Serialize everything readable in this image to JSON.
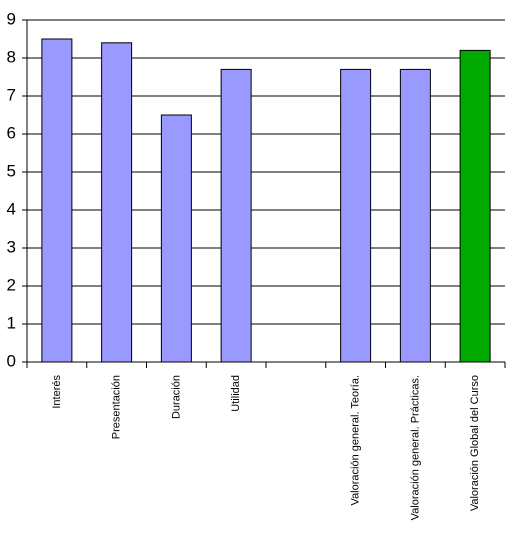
{
  "chart_data": {
    "type": "bar",
    "categories": [
      "Interés",
      "Presentación",
      "Duración",
      "Utilidad",
      null,
      "Valoración general. Teoría.",
      "Valoración general. Prácticas.",
      "Valoración Global del Curso"
    ],
    "values": [
      8.5,
      8.4,
      6.5,
      7.7,
      null,
      7.7,
      7.7,
      8.2
    ],
    "colors": [
      "#9999ff",
      "#9999ff",
      "#9999ff",
      "#9999ff",
      null,
      "#9999ff",
      "#9999ff",
      "#00aa00"
    ],
    "ylim": [
      0,
      9
    ],
    "yticks": [
      0,
      1,
      2,
      3,
      4,
      5,
      6,
      7,
      8,
      9
    ],
    "grid": true
  }
}
